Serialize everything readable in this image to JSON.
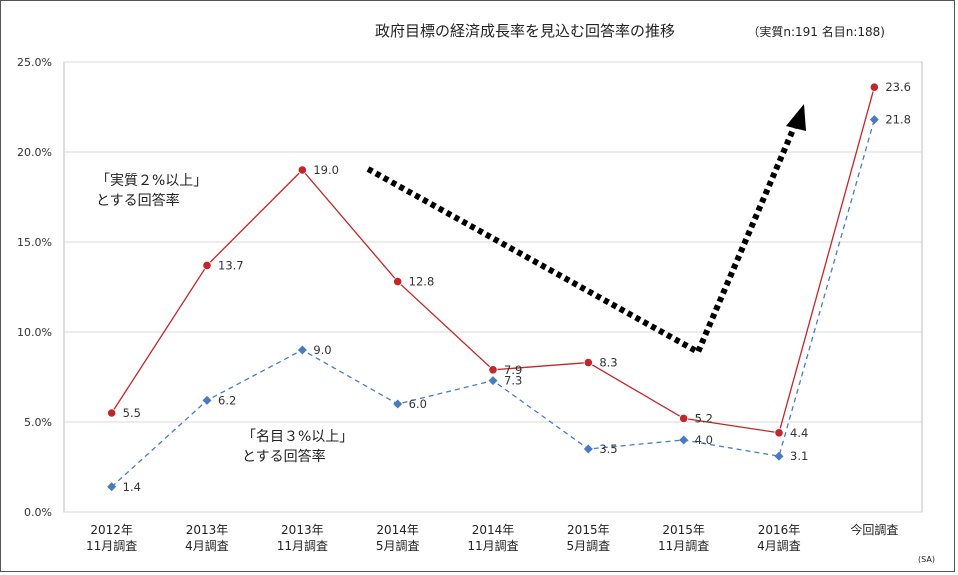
{
  "chart_data": {
    "type": "line",
    "title": "政府目標の経済成長率を見込む回答率の推移",
    "subtitle": "（実質n:191 名目n:188)",
    "note": "(SA)",
    "categories": [
      [
        "2012年",
        "11月調査"
      ],
      [
        "2013年",
        "4月調査"
      ],
      [
        "2013年",
        "11月調査"
      ],
      [
        "2014年",
        "5月調査"
      ],
      [
        "2014年",
        "11月調査"
      ],
      [
        "2015年",
        "5月調査"
      ],
      [
        "2015年",
        "11月調査"
      ],
      [
        "2016年",
        "4月調査"
      ],
      [
        "今回調査"
      ]
    ],
    "ylim": [
      0,
      25
    ],
    "yticks": [
      "0.0%",
      "5.0%",
      "10.0%",
      "15.0%",
      "20.0%",
      "25.0%"
    ],
    "grid": true,
    "series": [
      {
        "label_lines": [
          "「実質２%以上」",
          "とする回答率"
        ],
        "color": "#c0262a",
        "style": "solid",
        "marker": "circle",
        "values": [
          5.5,
          13.7,
          19.0,
          12.8,
          7.9,
          8.3,
          5.2,
          4.4,
          23.6
        ],
        "data_labels": [
          "5.5",
          "13.7",
          "19.0",
          "12.8",
          "7.9",
          "8.3",
          "5.2",
          "4.4",
          "23.6"
        ]
      },
      {
        "label_lines": [
          "「名目３%以上」",
          "とする回答率"
        ],
        "color": "#4a7bbf",
        "style": "dashed",
        "marker": "diamond",
        "values": [
          1.4,
          6.2,
          9.0,
          6.0,
          7.3,
          3.5,
          4.0,
          3.1,
          21.8
        ],
        "data_labels": [
          "1.4",
          "6.2",
          "9.0",
          "6.0",
          "7.3",
          "3.5",
          "4.0",
          "3.1",
          "21.8"
        ]
      }
    ],
    "annotation_arrow": {
      "color": "#000000",
      "style": "dotted"
    }
  }
}
